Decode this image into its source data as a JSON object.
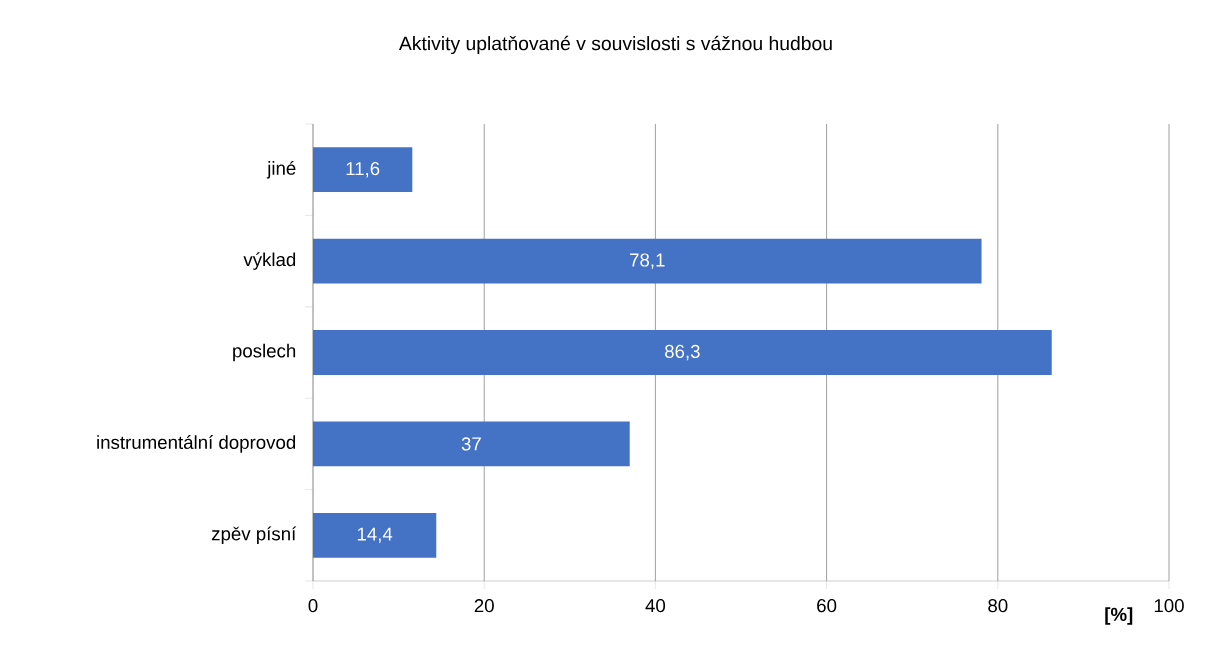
{
  "chart_data": {
    "type": "bar",
    "orientation": "horizontal",
    "title": "Aktivity uplatňované v souvislosti s  vážnou hudbou",
    "xlabel": "[%]",
    "categories": [
      "jiné",
      "výklad",
      "poslech",
      "instrumentální doprovod",
      "zpěv písní"
    ],
    "values": [
      11.6,
      78.1,
      86.3,
      37,
      14.4
    ],
    "value_labels": [
      "11,6",
      "78,1",
      "86,3",
      "37",
      "14,4"
    ],
    "color": "#4472c4",
    "xlim": [
      0,
      100
    ],
    "xticks": [
      0,
      20,
      40,
      60,
      80,
      100
    ],
    "grid": "x"
  }
}
